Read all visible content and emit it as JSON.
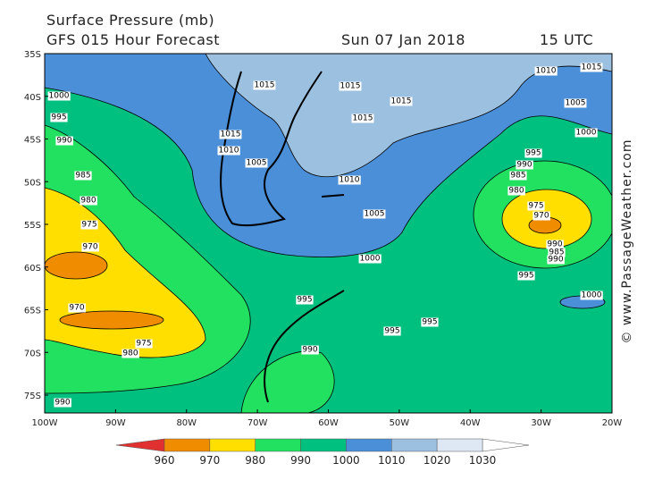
{
  "header": {
    "title": "Surface Pressure (mb)",
    "subtitle": "GFS 015 Hour Forecast",
    "date": "Sun 07 Jan 2018",
    "time": "15 UTC"
  },
  "map": {
    "latitude_labels": [
      "35S",
      "40S",
      "45S",
      "50S",
      "55S",
      "60S",
      "65S",
      "70S",
      "75S"
    ],
    "longitude_labels": [
      "100W",
      "90W",
      "80W",
      "70W",
      "60W",
      "50W",
      "40W",
      "30W",
      "20W"
    ],
    "contour_labels": [
      "1015",
      "1015",
      "1015",
      "1015",
      "1010",
      "1015",
      "1000",
      "995",
      "990",
      "1015",
      "1010",
      "1005",
      "1010",
      "1005",
      "1005",
      "1000",
      "995",
      "990",
      "985",
      "980",
      "975",
      "970",
      "985",
      "980",
      "975",
      "970",
      "1000",
      "990",
      "985",
      "990",
      "995",
      "1000",
      "995",
      "995",
      "995",
      "970",
      "975",
      "980",
      "990",
      "990"
    ]
  },
  "colorbar": {
    "labels": [
      "960",
      "970",
      "980",
      "990",
      "1000",
      "1010",
      "1020",
      "1030"
    ]
  },
  "watermark": "© www.PassageWeather.com"
}
